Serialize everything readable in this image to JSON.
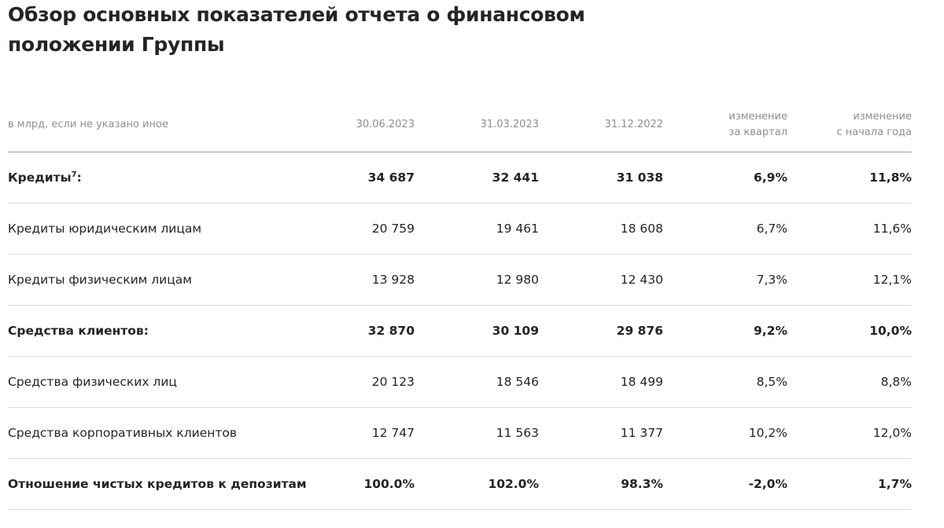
{
  "title": "Обзор основных показателей отчета о финансовом положении Группы",
  "table": {
    "header": {
      "unit_note": "в млрд, если не указано иное",
      "col1": "30.06.2023",
      "col2": "31.03.2023",
      "col3": "31.12.2022",
      "col4_line1": "изменение",
      "col4_line2": "за квартал",
      "col5_line1": "изменение",
      "col5_line2": "с начала года"
    },
    "rows": [
      {
        "label": "Кредиты",
        "footnote": "7",
        "suffix": ":",
        "bold": true,
        "v1": "34 687",
        "v2": "32 441",
        "v3": "31 038",
        "chg_q": "6,9%",
        "chg_ytd": "11,8%"
      },
      {
        "label": "Кредиты юридическим лицам",
        "bold": false,
        "v1": "20 759",
        "v2": "19 461",
        "v3": "18 608",
        "chg_q": "6,7%",
        "chg_ytd": "11,6%"
      },
      {
        "label": "Кредиты физическим лицам",
        "bold": false,
        "v1": "13 928",
        "v2": "12 980",
        "v3": "12 430",
        "chg_q": "7,3%",
        "chg_ytd": "12,1%"
      },
      {
        "label": "Средства клиентов:",
        "bold": true,
        "v1": "32 870",
        "v2": "30 109",
        "v3": "29 876",
        "chg_q": "9,2%",
        "chg_ytd": "10,0%"
      },
      {
        "label": "Средства физических лиц",
        "bold": false,
        "v1": "20 123",
        "v2": "18 546",
        "v3": "18 499",
        "chg_q": "8,5%",
        "chg_ytd": "8,8%"
      },
      {
        "label": "Средства корпоративных клиентов",
        "bold": false,
        "v1": "12 747",
        "v2": "11 563",
        "v3": "11 377",
        "chg_q": "10,2%",
        "chg_ytd": "12,0%"
      },
      {
        "label": "Отношение чистых кредитов к депозитам",
        "bold": true,
        "v1": "100.0%",
        "v2": "102.0%",
        "v3": "98.3%",
        "chg_q": "-2,0%",
        "chg_ytd": "1,7%"
      }
    ]
  }
}
